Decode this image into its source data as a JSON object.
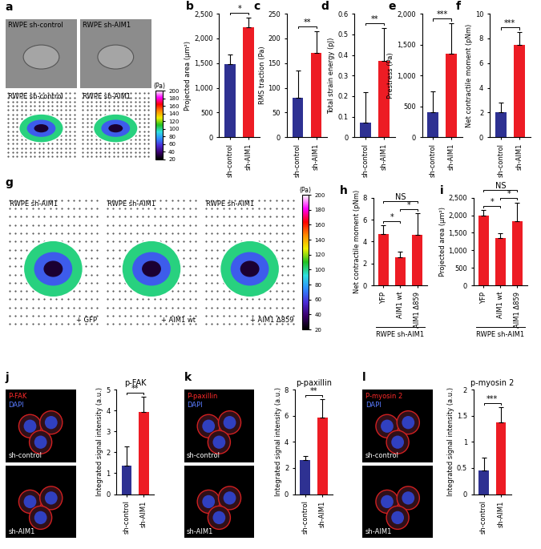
{
  "chart_data": [
    {
      "type": "image",
      "panel": "a",
      "tiles": [
        {
          "kind": "phase",
          "title": "RWPE sh-control"
        },
        {
          "kind": "phase",
          "title": "RWPE sh-AIM1"
        },
        {
          "kind": "map",
          "title": "RWPE sh-control"
        },
        {
          "kind": "map",
          "title": "RWPE sh-AIM1"
        }
      ],
      "colorbar": {
        "range": [
          20,
          200
        ],
        "ticks": [
          20,
          40,
          60,
          80,
          100,
          120,
          140,
          160,
          180,
          200
        ],
        "label": "(Pa)"
      }
    },
    {
      "type": "bar",
      "panel": "b",
      "y_label": "Projected area (μm²)",
      "categories": [
        "sh-control",
        "sh-AIM1"
      ],
      "values": [
        1480,
        2220
      ],
      "errors": [
        200,
        200
      ],
      "colors": [
        "#2e3192",
        "#ed1c24"
      ],
      "ylim": [
        0,
        2500
      ],
      "yticks": [
        0,
        500,
        {
          "value": 1000,
          "label": "1,000"
        },
        {
          "value": 1500,
          "label": "1,500"
        },
        {
          "value": 2000,
          "label": "2,000"
        },
        {
          "value": 2500,
          "label": "2,500"
        }
      ],
      "annotations": [
        {
          "text": "*",
          "between": [
            0,
            1
          ]
        }
      ]
    },
    {
      "type": "bar",
      "panel": "c",
      "y_label": "RMS traction (Pa)",
      "categories": [
        "sh-control",
        "sh-AIM1"
      ],
      "values": [
        80,
        170
      ],
      "errors": [
        55,
        45
      ],
      "colors": [
        "#2e3192",
        "#ed1c24"
      ],
      "ylim": [
        0,
        250
      ],
      "yticks": [
        0,
        50,
        100,
        150,
        200,
        250
      ],
      "annotations": [
        {
          "text": "**",
          "between": [
            0,
            1
          ]
        }
      ]
    },
    {
      "type": "bar",
      "panel": "d",
      "y_label": "Total strain energy (pJ)",
      "categories": [
        "sh-control",
        "sh-AIM1"
      ],
      "values": [
        0.07,
        0.37
      ],
      "errors": [
        0.15,
        0.16
      ],
      "colors": [
        "#2e3192",
        "#ed1c24"
      ],
      "ylim": [
        0,
        0.6
      ],
      "yticks": [
        0,
        0.1,
        0.2,
        0.3,
        0.4,
        0.5,
        0.6
      ],
      "annotations": [
        {
          "text": "**",
          "between": [
            0,
            1
          ]
        }
      ]
    },
    {
      "type": "bar",
      "panel": "e",
      "y_label": "Prestress (Pa)",
      "categories": [
        "sh-control",
        "sh-AIM1"
      ],
      "values": [
        410,
        1350
      ],
      "errors": [
        330,
        490
      ],
      "colors": [
        "#2e3192",
        "#ed1c24"
      ],
      "ylim": [
        0,
        2000
      ],
      "yticks": [
        0,
        500,
        {
          "value": 1000,
          "label": "1,000"
        },
        {
          "value": 1500,
          "label": "1,500"
        },
        {
          "value": 2000,
          "label": "2,000"
        }
      ],
      "annotations": [
        {
          "text": "***",
          "between": [
            0,
            1
          ]
        }
      ]
    },
    {
      "type": "bar",
      "panel": "f",
      "y_label": "Net contractile moment (pNm)",
      "categories": [
        "sh-control",
        "sh-AIM1"
      ],
      "values": [
        2.0,
        7.5
      ],
      "errors": [
        0.8,
        1.0
      ],
      "colors": [
        "#2e3192",
        "#ed1c24"
      ],
      "ylim": [
        0,
        10
      ],
      "yticks": [
        0,
        2,
        4,
        6,
        8,
        10
      ],
      "annotations": [
        {
          "text": "***",
          "between": [
            0,
            1
          ]
        }
      ]
    },
    {
      "type": "image",
      "panel": "g",
      "tiles": [
        {
          "kind": "map",
          "title": "RWPE sh-AIM1",
          "label": "+ GFP"
        },
        {
          "kind": "map",
          "title": "RWPE sh-AIM1",
          "label": "+ AIM1 wt"
        },
        {
          "kind": "map",
          "title": "RWPE sh-AIM1",
          "label": "+ AIM1 Δ859"
        }
      ],
      "colorbar": {
        "range": [
          20,
          200
        ],
        "ticks": [
          20,
          40,
          60,
          80,
          100,
          120,
          140,
          160,
          180,
          200
        ],
        "label": "(Pa)"
      }
    },
    {
      "type": "bar",
      "panel": "h",
      "y_label": "Net contractile moment (pNm)",
      "categories": [
        "YFP",
        "AIM1 wt",
        "AIM1 Δ859"
      ],
      "values": [
        4.7,
        2.6,
        4.6
      ],
      "errors": [
        0.8,
        0.5,
        2.0
      ],
      "colors": [
        "#ed1c24",
        "#ed1c24",
        "#ed1c24"
      ],
      "ylim": [
        0,
        8
      ],
      "yticks": [
        0,
        2,
        4,
        6,
        8
      ],
      "group": "RWPE sh-AIM1",
      "annotations": [
        {
          "text": "*",
          "between": [
            0,
            1
          ]
        },
        {
          "text": "*",
          "between": [
            1,
            2
          ]
        },
        {
          "text": "NS",
          "between": [
            0,
            2
          ]
        }
      ]
    },
    {
      "type": "bar",
      "panel": "i",
      "y_label": "Projected area (μm²)",
      "categories": [
        "YFP",
        "AIM1 wt",
        "AIM1 Δ859"
      ],
      "values": [
        1980,
        1360,
        1830
      ],
      "errors": [
        180,
        130,
        520
      ],
      "colors": [
        "#ed1c24",
        "#ed1c24",
        "#ed1c24"
      ],
      "ylim": [
        0,
        2500
      ],
      "yticks": [
        0,
        500,
        {
          "value": 1000,
          "label": "1,000"
        },
        {
          "value": 1500,
          "label": "1,500"
        },
        {
          "value": 2000,
          "label": "2,000"
        },
        {
          "value": 2500,
          "label": "2,500"
        }
      ],
      "group": "RWPE sh-AIM1",
      "annotations": [
        {
          "text": "*",
          "between": [
            0,
            1
          ]
        },
        {
          "text": "*",
          "between": [
            1,
            2
          ]
        },
        {
          "text": "NS",
          "between": [
            0,
            2
          ]
        }
      ]
    },
    {
      "type": "image",
      "panel": "j",
      "tiles": [
        {
          "kind": "stain",
          "stains": [
            {
              "text": "P-FAK",
              "color": "#ff2a2a"
            },
            {
              "text": "DAPI",
              "color": "#5a7cff"
            }
          ],
          "label": "sh-control"
        },
        {
          "kind": "stain",
          "label": "sh-AIM1"
        }
      ]
    },
    {
      "type": "bar",
      "title": "p-FAK",
      "y_label": "Integrated signal intensity (a.u.)",
      "categories": [
        "sh-control",
        "sh-AIM1"
      ],
      "values": [
        1.35,
        3.95
      ],
      "errors": [
        0.95,
        0.7
      ],
      "colors": [
        "#2e3192",
        "#ed1c24"
      ],
      "ylim": [
        0,
        5
      ],
      "yticks": [
        0,
        1,
        2,
        3,
        4,
        5
      ],
      "annotations": [
        {
          "text": "**",
          "between": [
            0,
            1
          ]
        }
      ]
    },
    {
      "type": "image",
      "panel": "k",
      "tiles": [
        {
          "kind": "stain",
          "stains": [
            {
              "text": "P-paxillin",
              "color": "#ff2a2a"
            },
            {
              "text": "DAPI",
              "color": "#5a7cff"
            }
          ],
          "label": "sh-control"
        },
        {
          "kind": "stain",
          "label": "sh-AIM1"
        }
      ]
    },
    {
      "type": "bar",
      "title": "p-paxillin",
      "y_label": "Integrated signal intensity (a.u.)",
      "categories": [
        "sh-control",
        "sh-AIM1"
      ],
      "values": [
        2.6,
        5.9
      ],
      "errors": [
        0.3,
        1.4
      ],
      "colors": [
        "#2e3192",
        "#ed1c24"
      ],
      "ylim": [
        0,
        8
      ],
      "yticks": [
        0,
        2,
        4,
        6,
        8
      ],
      "annotations": [
        {
          "text": "**",
          "between": [
            0,
            1
          ]
        }
      ]
    },
    {
      "type": "image",
      "panel": "l",
      "tiles": [
        {
          "kind": "stain",
          "stains": [
            {
              "text": "P-myosin 2",
              "color": "#ff2a2a"
            },
            {
              "text": "DAPI",
              "color": "#5a7cff"
            }
          ],
          "label": "sh-control"
        },
        {
          "kind": "stain",
          "label": "sh-AIM1"
        }
      ]
    },
    {
      "type": "bar",
      "title": "p-myosin 2",
      "y_label": "Integrated signal intensity (a.u.)",
      "categories": [
        "sh-control",
        "sh-AIM1"
      ],
      "values": [
        0.45,
        1.38
      ],
      "errors": [
        0.25,
        0.28
      ],
      "colors": [
        "#2e3192",
        "#ed1c24"
      ],
      "ylim": [
        0,
        2
      ],
      "yticks": [
        0,
        0.5,
        1,
        1.5,
        2
      ],
      "annotations": [
        {
          "text": "***",
          "between": [
            0,
            1
          ]
        }
      ]
    }
  ]
}
